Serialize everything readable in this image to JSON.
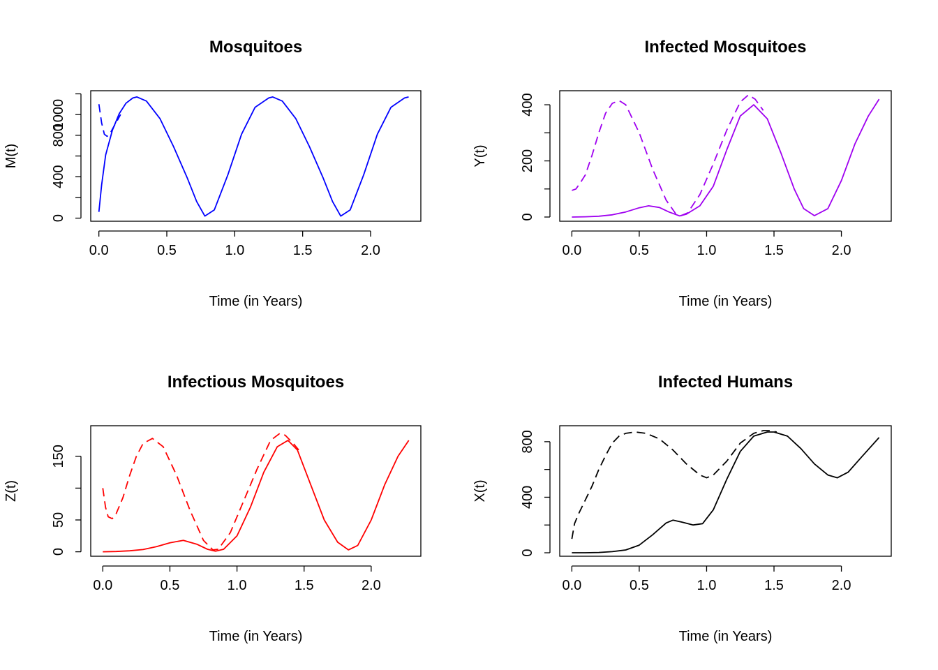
{
  "chart_data": [
    {
      "type": "line",
      "title": "Mosquitoes",
      "xlabel": "Time (in Years)",
      "ylabel": "M(t)",
      "color": "#0000ff",
      "xlim": [
        -0.06,
        2.37
      ],
      "ylim": [
        -30,
        1230
      ],
      "xticks": [
        0.0,
        0.5,
        1.0,
        1.5,
        2.0
      ],
      "xtick_labels": [
        "0.0",
        "0.5",
        "1.0",
        "1.5",
        "2.0"
      ],
      "yticks": [
        0,
        200,
        400,
        600,
        800,
        1000,
        1200
      ],
      "ytick_labels": [
        "0",
        "",
        "400",
        "",
        "800",
        "1000",
        ""
      ],
      "grid": false,
      "series": [
        {
          "style": "solid",
          "x": [
            0.0,
            0.02,
            0.05,
            0.1,
            0.15,
            0.2,
            0.25,
            0.28,
            0.35,
            0.45,
            0.55,
            0.65,
            0.72,
            0.78,
            0.85,
            0.95,
            1.05,
            1.15,
            1.25,
            1.28,
            1.35,
            1.45,
            1.55,
            1.65,
            1.72,
            1.78,
            1.85,
            1.95,
            2.05,
            2.15,
            2.25,
            2.28
          ],
          "y": [
            60,
            320,
            610,
            850,
            1010,
            1110,
            1160,
            1170,
            1130,
            960,
            690,
            390,
            160,
            20,
            80,
            420,
            810,
            1070,
            1160,
            1170,
            1130,
            960,
            690,
            390,
            160,
            20,
            80,
            420,
            810,
            1070,
            1160,
            1170
          ]
        },
        {
          "style": "dashed",
          "x": [
            0.0,
            0.02,
            0.04,
            0.06,
            0.08,
            0.1,
            0.13,
            0.16
          ],
          "y": [
            1100,
            920,
            810,
            790,
            810,
            860,
            930,
            1000
          ]
        }
      ]
    },
    {
      "type": "line",
      "title": "Infected Mosquitoes",
      "xlabel": "Time (in Years)",
      "ylabel": "Y(t)",
      "color": "#9f00f0",
      "xlim": [
        -0.09,
        2.37
      ],
      "ylim": [
        -15,
        450
      ],
      "xticks": [
        0.0,
        0.5,
        1.0,
        1.5,
        2.0
      ],
      "xtick_labels": [
        "0.0",
        "0.5",
        "1.0",
        "1.5",
        "2.0"
      ],
      "yticks": [
        0,
        100,
        200,
        300,
        400
      ],
      "ytick_labels": [
        "0",
        "",
        "200",
        "",
        "400"
      ],
      "grid": false,
      "series": [
        {
          "style": "solid",
          "x": [
            0.0,
            0.1,
            0.2,
            0.3,
            0.4,
            0.5,
            0.57,
            0.65,
            0.72,
            0.8,
            0.85,
            0.95,
            1.05,
            1.15,
            1.25,
            1.35,
            1.45,
            1.55,
            1.65,
            1.72,
            1.8,
            1.9,
            2.0,
            2.1,
            2.2,
            2.28
          ],
          "y": [
            0,
            1,
            3,
            8,
            18,
            33,
            40,
            34,
            18,
            4,
            10,
            40,
            110,
            240,
            360,
            400,
            350,
            230,
            100,
            30,
            5,
            30,
            130,
            260,
            360,
            420
          ]
        },
        {
          "style": "dashed",
          "x": [
            0.0,
            0.03,
            0.06,
            0.1,
            0.15,
            0.2,
            0.25,
            0.3,
            0.35,
            0.4,
            0.5,
            0.6,
            0.7,
            0.77,
            0.81,
            0.86,
            0.95,
            1.05,
            1.15,
            1.25,
            1.31,
            1.36,
            1.42
          ],
          "y": [
            95,
            100,
            120,
            150,
            220,
            300,
            370,
            405,
            415,
            400,
            300,
            170,
            60,
            12,
            5,
            15,
            80,
            190,
            310,
            410,
            435,
            420,
            380
          ]
        }
      ]
    },
    {
      "type": "line",
      "title": "Infectious Mosquitoes",
      "xlabel": "Time (in Years)",
      "ylabel": "Z(t)",
      "color": "#ff0000",
      "xlim": [
        -0.09,
        2.37
      ],
      "ylim": [
        -7,
        198
      ],
      "xticks": [
        0.0,
        0.5,
        1.0,
        1.5,
        2.0
      ],
      "xtick_labels": [
        "0.0",
        "0.5",
        "1.0",
        "1.5",
        "2.0"
      ],
      "yticks": [
        0,
        50,
        100,
        150
      ],
      "ytick_labels": [
        "0",
        "50",
        "",
        "150"
      ],
      "grid": false,
      "series": [
        {
          "style": "solid",
          "x": [
            0.0,
            0.1,
            0.2,
            0.3,
            0.4,
            0.5,
            0.6,
            0.7,
            0.78,
            0.84,
            0.9,
            1.0,
            1.1,
            1.2,
            1.3,
            1.38,
            1.45,
            1.55,
            1.65,
            1.75,
            1.83,
            1.9,
            2.0,
            2.1,
            2.2,
            2.28
          ],
          "y": [
            0,
            0.5,
            1.5,
            3.5,
            8,
            14,
            18,
            12,
            4,
            1,
            4,
            25,
            70,
            125,
            165,
            175,
            160,
            105,
            50,
            15,
            3,
            10,
            50,
            105,
            150,
            175
          ]
        },
        {
          "style": "dashed",
          "x": [
            0.0,
            0.02,
            0.04,
            0.07,
            0.1,
            0.15,
            0.2,
            0.25,
            0.3,
            0.37,
            0.45,
            0.55,
            0.65,
            0.75,
            0.82,
            0.86,
            0.95,
            1.05,
            1.15,
            1.25,
            1.32,
            1.36,
            1.42,
            1.46
          ],
          "y": [
            100,
            70,
            55,
            52,
            60,
            85,
            120,
            150,
            170,
            178,
            165,
            120,
            65,
            18,
            3,
            4,
            30,
            80,
            130,
            175,
            186,
            183,
            170,
            160
          ]
        }
      ]
    },
    {
      "type": "line",
      "title": "Infected Humans",
      "xlabel": "Time (in Years)",
      "ylabel": "X(t)",
      "color": "#000000",
      "xlim": [
        -0.09,
        2.37
      ],
      "ylim": [
        -25,
        915
      ],
      "xticks": [
        0.0,
        0.5,
        1.0,
        1.5,
        2.0
      ],
      "xtick_labels": [
        "0.0",
        "0.5",
        "1.0",
        "1.5",
        "2.0"
      ],
      "yticks": [
        0,
        200,
        400,
        600,
        800
      ],
      "ytick_labels": [
        "0",
        "",
        "400",
        "",
        "800"
      ],
      "grid": false,
      "series": [
        {
          "style": "solid",
          "x": [
            0.0,
            0.1,
            0.2,
            0.3,
            0.4,
            0.5,
            0.6,
            0.7,
            0.75,
            0.82,
            0.9,
            0.97,
            1.05,
            1.15,
            1.25,
            1.35,
            1.45,
            1.5,
            1.6,
            1.7,
            1.8,
            1.9,
            1.97,
            2.05,
            2.15,
            2.28
          ],
          "y": [
            0,
            0,
            2,
            8,
            20,
            55,
            130,
            215,
            235,
            220,
            200,
            210,
            310,
            530,
            730,
            840,
            870,
            870,
            840,
            750,
            640,
            560,
            540,
            580,
            690,
            830
          ]
        },
        {
          "style": "dashed",
          "x": [
            0.0,
            0.02,
            0.05,
            0.1,
            0.15,
            0.2,
            0.25,
            0.3,
            0.35,
            0.4,
            0.47,
            0.55,
            0.65,
            0.75,
            0.85,
            0.95,
            1.0,
            1.05,
            1.15,
            1.25,
            1.35,
            1.42,
            1.47,
            1.52
          ],
          "y": [
            100,
            210,
            280,
            380,
            480,
            600,
            700,
            790,
            840,
            860,
            870,
            860,
            820,
            740,
            640,
            560,
            540,
            560,
            660,
            790,
            860,
            880,
            880,
            870
          ]
        }
      ]
    }
  ]
}
